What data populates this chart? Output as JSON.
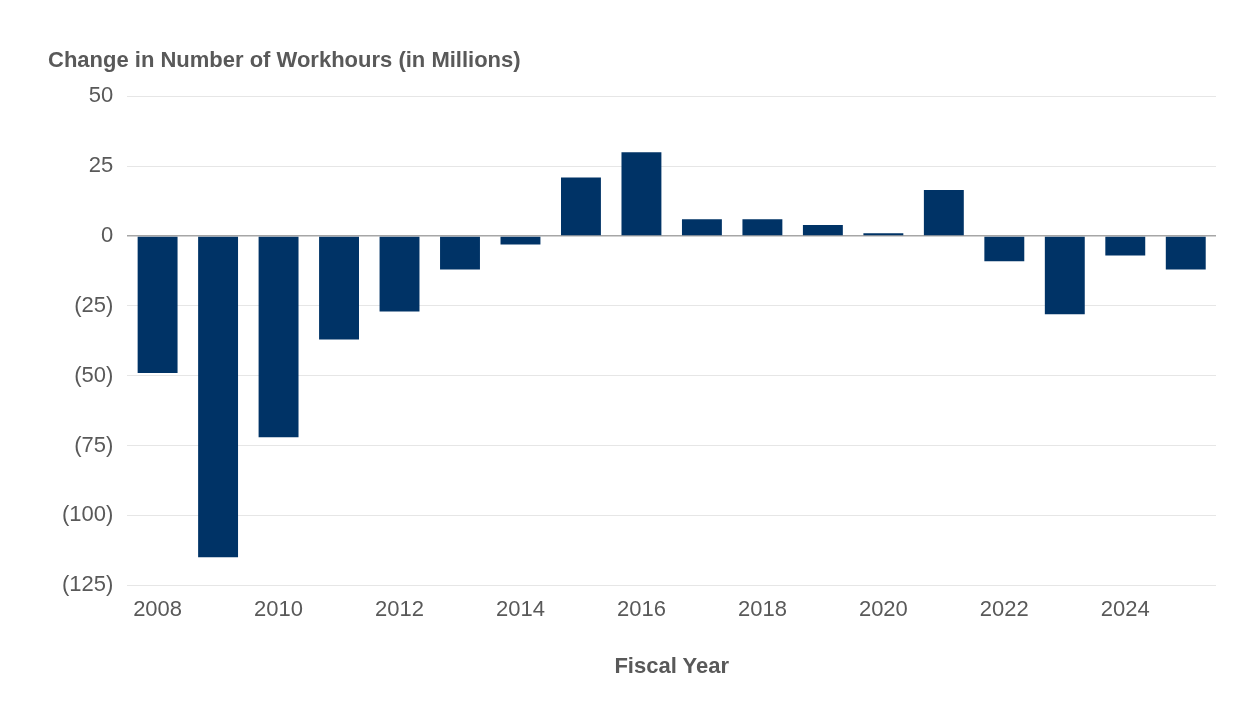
{
  "chart_data": {
    "type": "bar",
    "ylabel": "Change in Number of Workhours (in Millions)",
    "xlabel": "Fiscal Year",
    "categories": [
      "2008",
      null,
      "2010",
      null,
      "2012",
      null,
      "2014",
      null,
      "2016",
      null,
      "2018",
      null,
      "2020",
      null,
      "2022",
      null,
      "2024",
      null
    ],
    "values": [
      -49,
      -115,
      -72,
      -37,
      -27,
      -12,
      -3,
      21,
      30,
      6,
      6,
      4,
      1,
      16.5,
      -9,
      -28,
      -7,
      -12
    ],
    "color": "#003366",
    "ylim": [
      -125,
      50
    ],
    "yticks": [
      50,
      25,
      0,
      {
        "value": -25,
        "label": "(25)"
      },
      {
        "value": -50,
        "label": "(50)"
      },
      {
        "value": -75,
        "label": "(75)"
      },
      {
        "value": -100,
        "label": "(100)"
      },
      {
        "value": -125,
        "label": "(125)"
      }
    ],
    "grid": "y",
    "legend": false
  }
}
